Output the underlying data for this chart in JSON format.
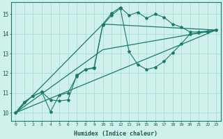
{
  "bg_color": "#cff0eb",
  "grid_color": "#a8ddd6",
  "line_color": "#1a7a6a",
  "xlabel": "Humidex (Indice chaleur)",
  "yticks": [
    10,
    11,
    12,
    13,
    14,
    15
  ],
  "xlim": [
    -0.5,
    23.5
  ],
  "ylim": [
    9.6,
    15.6
  ],
  "series1_x": [
    0,
    1,
    2,
    3,
    4,
    5,
    6,
    7,
    8,
    9,
    10,
    11,
    12,
    13,
    14,
    15,
    16,
    17,
    18,
    19,
    20,
    21,
    22,
    23
  ],
  "series1_y": [
    10.0,
    10.55,
    10.85,
    11.05,
    10.65,
    10.6,
    10.65,
    11.9,
    12.2,
    12.3,
    14.5,
    15.05,
    15.35,
    14.95,
    15.1,
    14.8,
    15.0,
    14.85,
    14.5,
    14.35,
    14.1,
    14.1,
    14.15,
    14.2
  ],
  "series2_x": [
    0,
    1,
    2,
    3,
    4,
    5,
    6,
    7,
    8,
    9,
    10,
    11,
    12,
    13,
    14,
    15,
    16,
    17,
    18,
    19,
    20,
    21,
    22,
    23
  ],
  "series2_y": [
    10.0,
    10.55,
    10.85,
    11.05,
    10.05,
    10.9,
    11.0,
    11.85,
    12.2,
    12.25,
    14.45,
    14.95,
    15.3,
    13.1,
    12.45,
    12.2,
    12.3,
    12.6,
    13.05,
    13.5,
    14.0,
    14.05,
    14.1,
    14.2
  ],
  "trend1_x": [
    0,
    23
  ],
  "trend1_y": [
    10.0,
    14.2
  ],
  "trend2_x": [
    0,
    10,
    23
  ],
  "trend2_y": [
    10.0,
    13.2,
    14.2
  ],
  "trend3_x": [
    0,
    10,
    23
  ],
  "trend3_y": [
    10.0,
    14.5,
    14.2
  ]
}
